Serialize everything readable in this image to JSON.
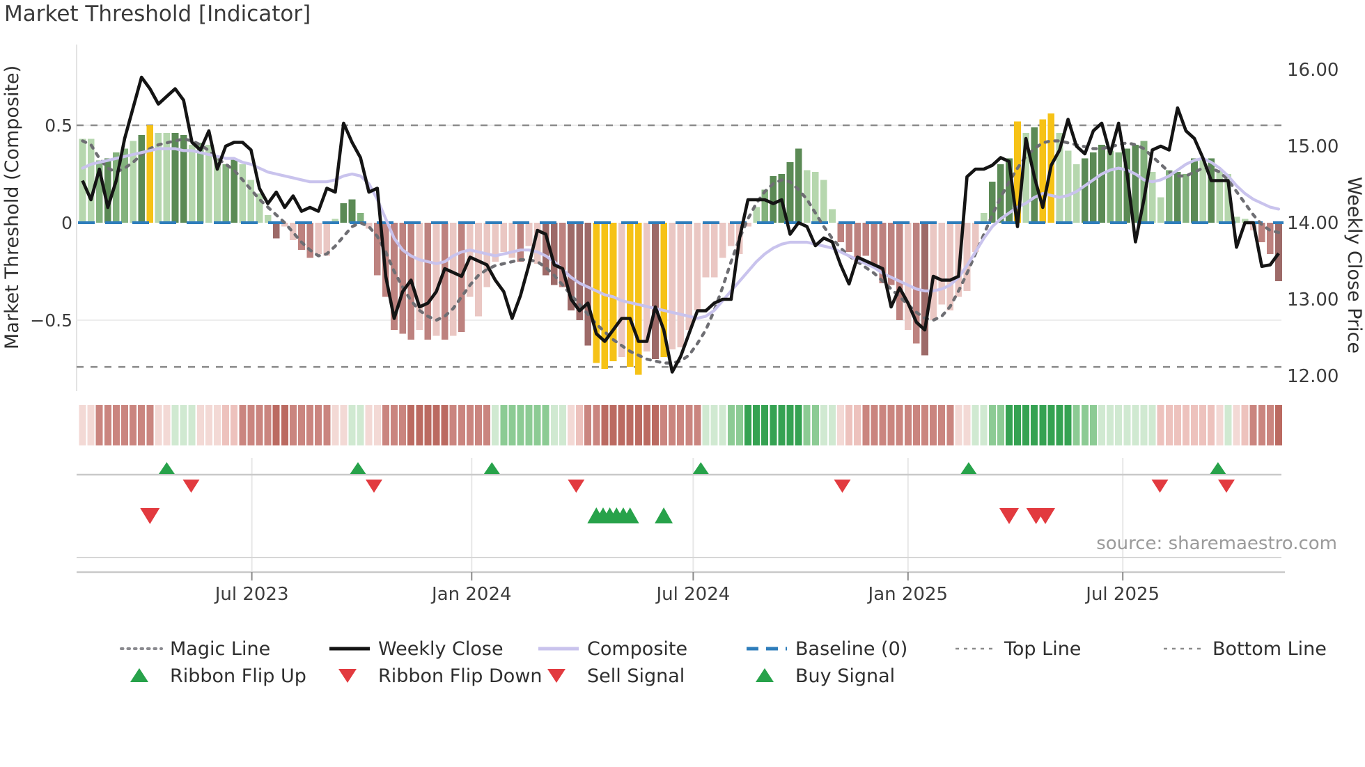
{
  "title": "Market Threshold [Indicator]",
  "source_note": "source: sharemaestro.com",
  "left_axis": {
    "label": "Market Threshold (Composite)",
    "ticks": [
      "0.5",
      "0",
      "−0.5"
    ],
    "tick_values": [
      0.5,
      0,
      -0.5
    ]
  },
  "right_axis": {
    "label": "Weekly Close Price",
    "ticks": [
      "16.00",
      "15.00",
      "14.00",
      "13.00",
      "12.00"
    ],
    "tick_values": [
      16,
      15,
      14,
      13,
      12
    ]
  },
  "x_axis": {
    "ticks": [
      "Jul 2023",
      "Jan 2024",
      "Jul 2024",
      "Jan 2025",
      "Jul 2025"
    ],
    "tick_weeks": [
      20.1,
      46.2,
      72.5,
      98.0,
      123.5
    ]
  },
  "legend": {
    "row1": [
      {
        "label": "Magic Line",
        "swatch": "dotted-gray"
      },
      {
        "label": "Weekly Close",
        "swatch": "solid-black"
      },
      {
        "label": "Composite",
        "swatch": "solid-lavender"
      },
      {
        "label": "Baseline (0)",
        "swatch": "dashed-blue"
      },
      {
        "label": "Top Line",
        "swatch": "dashed-gray"
      },
      {
        "label": "Bottom Line",
        "swatch": "dashed-gray"
      }
    ],
    "row2": [
      {
        "label": "Ribbon Flip Up",
        "marker": "triangle-up-green"
      },
      {
        "label": "Ribbon Flip Down",
        "marker": "triangle-down-red"
      },
      {
        "label": "Sell Signal",
        "marker": "triangle-down-red"
      },
      {
        "label": "Buy Signal",
        "marker": "triangle-up-green"
      }
    ]
  },
  "colors": {
    "weekly_close": "#141414",
    "composite": "#c9c3ed",
    "magic": "#6e6e73",
    "baseline": "#2e7dbb",
    "band_lines": "#8c8c8c",
    "grid": "#ededed",
    "spine": "#e3e3e3",
    "signal_green": "#27a24a",
    "signal_red": "#e23a3f",
    "axis_text": "#3c3c3c",
    "muted_text": "#9b9b9b",
    "bar_classes": {
      "P": "#b6d7ae",
      "M": "#83b27d",
      "D": "#5b8a55",
      "G": "#f6c216",
      "p": "#eac7c3",
      "m": "#bd827f",
      "d": "#9d6a68"
    },
    "ribbon_classes": {
      "a": "#f3d9d5",
      "b": "#edc2bd",
      "c": "#ca857f",
      "e": "#bb6a61",
      "x": "#d0e9d1",
      "y": "#8ccb94",
      "z": "#35a252"
    }
  },
  "chart_data": {
    "type": "bar+line",
    "title": "Market Threshold [Indicator]",
    "x_unit": "weekly, Feb 2023 - Nov 2025",
    "weeks": 143,
    "baseline": 0,
    "top_line": 0.5,
    "bottom_line": -0.74,
    "ylim_left": [
      -0.85,
      0.8
    ],
    "ylim_right": [
      11.7,
      16.2
    ],
    "threshold_bars": {
      "values": [
        0.43,
        0.43,
        0.32,
        0.33,
        0.36,
        0.38,
        0.42,
        0.45,
        0.5,
        0.46,
        0.46,
        0.46,
        0.45,
        0.4,
        0.41,
        0.4,
        0.34,
        0.3,
        0.33,
        0.3,
        0.22,
        0.15,
        0.04,
        -0.08,
        -0.02,
        -0.09,
        -0.14,
        -0.18,
        -0.16,
        -0.17,
        0.02,
        0.1,
        0.12,
        0.05,
        -0.03,
        -0.27,
        -0.38,
        -0.55,
        -0.57,
        -0.6,
        -0.55,
        -0.6,
        -0.58,
        -0.6,
        -0.58,
        -0.56,
        -0.38,
        -0.48,
        -0.33,
        -0.2,
        -0.15,
        -0.18,
        -0.2,
        -0.12,
        -0.21,
        -0.27,
        -0.32,
        -0.33,
        -0.45,
        -0.5,
        -0.63,
        -0.72,
        -0.75,
        -0.71,
        -0.69,
        -0.74,
        -0.78,
        -0.66,
        -0.7,
        -0.69,
        -0.65,
        -0.64,
        -0.55,
        -0.45,
        -0.28,
        -0.28,
        -0.18,
        -0.12,
        -0.16,
        -0.02,
        0.08,
        0.17,
        0.24,
        0.25,
        0.31,
        0.38,
        0.27,
        0.26,
        0.22,
        0.07,
        -0.1,
        -0.15,
        -0.21,
        -0.17,
        -0.22,
        -0.31,
        -0.32,
        -0.5,
        -0.55,
        -0.62,
        -0.68,
        -0.5,
        -0.42,
        -0.45,
        -0.38,
        -0.35,
        -0.15,
        0.05,
        0.21,
        0.3,
        0.33,
        0.52,
        0.46,
        0.49,
        0.53,
        0.56,
        0.46,
        0.37,
        0.3,
        0.33,
        0.36,
        0.4,
        0.37,
        0.36,
        0.38,
        0.4,
        0.42,
        0.26,
        0.13,
        0.27,
        0.26,
        0.25,
        0.33,
        0.33,
        0.33,
        0.27,
        0.25,
        0.03,
        0.02,
        -0.04,
        -0.1,
        -0.16,
        -0.3
      ],
      "color_classes": "PPMDMMPDGPPDDPMPPMDPPPPdppmmppPDDMpmmmmmpmpmpmppppppmppddmdddGGGpGGpdGppppppppppPMDDDDPPPPmmmmmmmmpmdppppppPDDDGPDGGPPPDDDMMDDMPPMDMDPDPPPPpmmd"
    },
    "weekly_close": [
      14.55,
      14.3,
      14.7,
      14.2,
      14.55,
      15.1,
      15.5,
      15.9,
      15.75,
      15.55,
      15.65,
      15.75,
      15.6,
      15.05,
      14.95,
      15.2,
      14.7,
      15.0,
      15.05,
      15.05,
      14.95,
      14.45,
      14.25,
      14.4,
      14.2,
      14.35,
      14.15,
      14.2,
      14.15,
      14.45,
      14.4,
      15.3,
      15.05,
      14.85,
      14.4,
      14.45,
      13.3,
      12.75,
      13.1,
      13.25,
      12.9,
      12.95,
      13.1,
      13.4,
      13.35,
      13.3,
      13.55,
      13.5,
      13.45,
      13.25,
      13.1,
      12.75,
      13.05,
      13.45,
      13.9,
      13.85,
      13.45,
      13.4,
      13.0,
      12.85,
      12.95,
      12.55,
      12.45,
      12.6,
      12.75,
      12.75,
      12.45,
      12.45,
      12.9,
      12.6,
      12.05,
      12.25,
      12.55,
      12.85,
      12.85,
      12.95,
      13.0,
      13.0,
      13.8,
      14.3,
      14.3,
      14.3,
      14.25,
      14.3,
      13.85,
      14.0,
      13.95,
      13.7,
      13.8,
      13.75,
      13.45,
      13.2,
      13.55,
      13.5,
      13.45,
      13.4,
      12.9,
      13.15,
      12.95,
      12.7,
      12.6,
      13.3,
      13.25,
      13.25,
      13.3,
      14.6,
      14.7,
      14.7,
      14.75,
      14.85,
      14.8,
      13.95,
      15.1,
      14.6,
      14.2,
      14.75,
      14.95,
      15.35,
      15.0,
      14.9,
      15.2,
      15.3,
      14.9,
      15.3,
      14.65,
      13.75,
      14.3,
      14.95,
      15.0,
      14.95,
      15.5,
      15.2,
      15.1,
      14.85,
      14.55,
      14.55,
      14.55,
      13.68,
      14.0,
      14.0,
      13.43,
      13.45,
      13.6
    ],
    "composite": [
      0.28,
      0.3,
      0.31,
      0.32,
      0.33,
      0.34,
      0.35,
      0.36,
      0.37,
      0.38,
      0.38,
      0.38,
      0.37,
      0.37,
      0.36,
      0.35,
      0.34,
      0.33,
      0.33,
      0.31,
      0.3,
      0.28,
      0.26,
      0.25,
      0.24,
      0.23,
      0.22,
      0.21,
      0.21,
      0.21,
      0.22,
      0.24,
      0.25,
      0.24,
      0.2,
      0.12,
      0.02,
      -0.08,
      -0.14,
      -0.17,
      -0.19,
      -0.2,
      -0.21,
      -0.2,
      -0.17,
      -0.15,
      -0.14,
      -0.15,
      -0.16,
      -0.17,
      -0.16,
      -0.15,
      -0.14,
      -0.14,
      -0.15,
      -0.17,
      -0.2,
      -0.24,
      -0.28,
      -0.31,
      -0.33,
      -0.35,
      -0.37,
      -0.38,
      -0.4,
      -0.41,
      -0.42,
      -0.43,
      -0.44,
      -0.45,
      -0.46,
      -0.47,
      -0.48,
      -0.49,
      -0.48,
      -0.45,
      -0.4,
      -0.35,
      -0.3,
      -0.25,
      -0.2,
      -0.16,
      -0.13,
      -0.11,
      -0.1,
      -0.1,
      -0.1,
      -0.11,
      -0.12,
      -0.13,
      -0.15,
      -0.17,
      -0.19,
      -0.21,
      -0.23,
      -0.26,
      -0.28,
      -0.3,
      -0.32,
      -0.34,
      -0.35,
      -0.35,
      -0.34,
      -0.32,
      -0.28,
      -0.22,
      -0.15,
      -0.08,
      -0.02,
      0.02,
      0.05,
      0.08,
      0.1,
      0.13,
      0.15,
      0.14,
      0.13,
      0.14,
      0.16,
      0.19,
      0.22,
      0.25,
      0.27,
      0.28,
      0.27,
      0.25,
      0.22,
      0.21,
      0.22,
      0.24,
      0.27,
      0.3,
      0.32,
      0.33,
      0.31,
      0.28,
      0.24,
      0.19,
      0.15,
      0.12,
      0.1,
      0.08,
      0.07
    ],
    "magic_line": [
      0.42,
      0.4,
      0.33,
      0.28,
      0.26,
      0.28,
      0.31,
      0.35,
      0.38,
      0.4,
      0.41,
      0.42,
      0.43,
      0.42,
      0.4,
      0.37,
      0.33,
      0.3,
      0.27,
      0.22,
      0.17,
      0.12,
      0.08,
      0.04,
      0.0,
      -0.05,
      -0.1,
      -0.14,
      -0.17,
      -0.16,
      -0.12,
      -0.07,
      -0.02,
      0.0,
      -0.02,
      -0.07,
      -0.15,
      -0.25,
      -0.33,
      -0.4,
      -0.45,
      -0.48,
      -0.5,
      -0.48,
      -0.44,
      -0.38,
      -0.32,
      -0.27,
      -0.24,
      -0.22,
      -0.21,
      -0.2,
      -0.19,
      -0.19,
      -0.2,
      -0.23,
      -0.27,
      -0.32,
      -0.37,
      -0.42,
      -0.47,
      -0.52,
      -0.56,
      -0.6,
      -0.63,
      -0.66,
      -0.68,
      -0.7,
      -0.71,
      -0.72,
      -0.72,
      -0.71,
      -0.68,
      -0.62,
      -0.55,
      -0.45,
      -0.33,
      -0.2,
      -0.08,
      0.02,
      0.1,
      0.16,
      0.2,
      0.22,
      0.21,
      0.17,
      0.12,
      0.05,
      -0.02,
      -0.08,
      -0.13,
      -0.17,
      -0.2,
      -0.23,
      -0.26,
      -0.3,
      -0.34,
      -0.38,
      -0.42,
      -0.46,
      -0.49,
      -0.5,
      -0.48,
      -0.43,
      -0.35,
      -0.26,
      -0.16,
      -0.06,
      0.04,
      0.13,
      0.21,
      0.28,
      0.34,
      0.38,
      0.41,
      0.42,
      0.42,
      0.41,
      0.4,
      0.39,
      0.38,
      0.38,
      0.39,
      0.4,
      0.41,
      0.4,
      0.38,
      0.34,
      0.3,
      0.26,
      0.24,
      0.24,
      0.26,
      0.28,
      0.28,
      0.26,
      0.22,
      0.16,
      0.1,
      0.04,
      -0.01,
      -0.04,
      -0.05
    ],
    "ribbon_classes": "aacccccccaaxxxaaabbcccceecccccaaxxaaccceeeeecccccxyyyyyyxxabcceeeeeeecccccxxxyyzzzzzzzyyxxabbcccccccccccaaxxyyzzzzzzzzyyyxxxxxxxbbbbbbbaxabccce",
    "signals": {
      "ribbon_flip_up_weeks": [
        10,
        32.7,
        48.6,
        73.4,
        105.2,
        134.8
      ],
      "ribbon_flip_down_weeks": [
        12.9,
        34.6,
        58.6,
        90.2,
        127.9,
        135.8
      ],
      "sell_weeks": [
        8,
        110,
        113.2,
        114.3
      ],
      "buy_weeks": [
        61,
        61.8,
        62.6,
        63.4,
        64.2,
        65,
        69
      ]
    }
  }
}
